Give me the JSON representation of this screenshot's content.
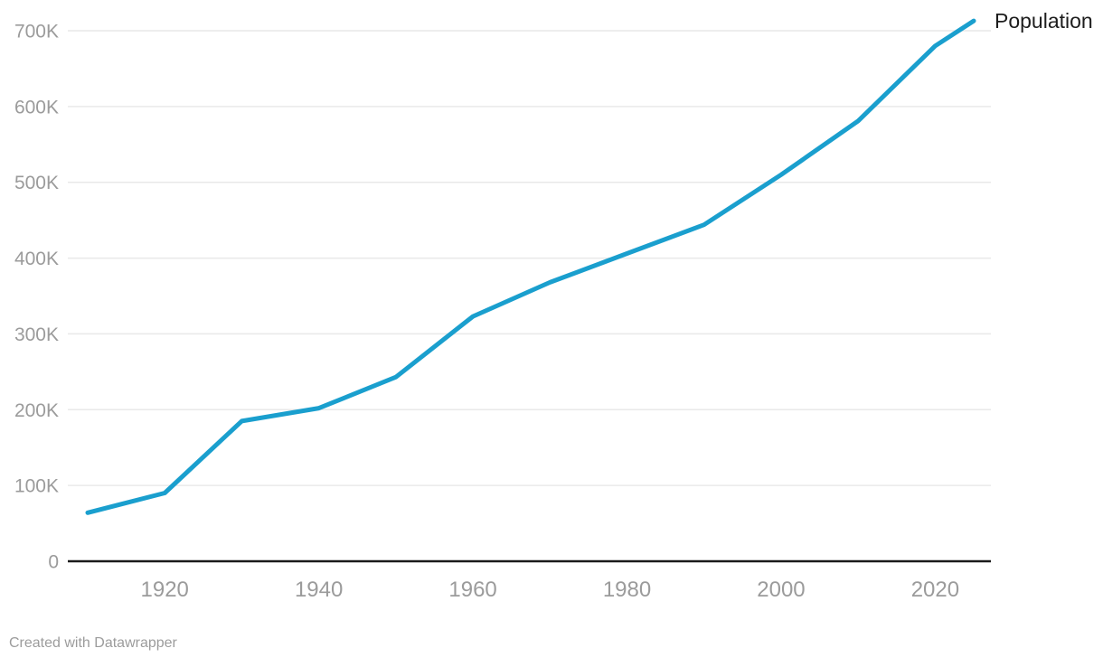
{
  "chart": {
    "series_label": "Population",
    "attribution": "Created with Datawrapper",
    "colors": {
      "line": "#1a9fce",
      "grid": "#e9e9e9",
      "axis": "#1a1a1a",
      "tick_text": "#9b9b9b",
      "label_text": "#1d1d1d",
      "background": "#ffffff"
    }
  },
  "chart_data": {
    "type": "line",
    "title": "",
    "xlabel": "",
    "ylabel": "",
    "series": [
      {
        "name": "Population",
        "x": [
          1910,
          1920,
          1930,
          1940,
          1950,
          1960,
          1970,
          1980,
          1990,
          2000,
          2010,
          2020,
          2025
        ],
        "values": [
          64000,
          90000,
          185000,
          202000,
          243000,
          323000,
          368000,
          406000,
          444000,
          510000,
          581000,
          680000,
          713000
        ]
      }
    ],
    "xlim": [
      1910,
      2025
    ],
    "ylim": [
      0,
      700000
    ],
    "x_ticks": [
      1920,
      1940,
      1960,
      1980,
      2000,
      2020
    ],
    "y_ticks": [
      {
        "value": 0,
        "label": "0"
      },
      {
        "value": 100000,
        "label": "100K"
      },
      {
        "value": 200000,
        "label": "200K"
      },
      {
        "value": 300000,
        "label": "300K"
      },
      {
        "value": 400000,
        "label": "400K"
      },
      {
        "value": 500000,
        "label": "500K"
      },
      {
        "value": 600000,
        "label": "600K"
      },
      {
        "value": 700000,
        "label": "700K"
      }
    ],
    "grid": "horizontal",
    "legend_position": "end-of-line"
  }
}
